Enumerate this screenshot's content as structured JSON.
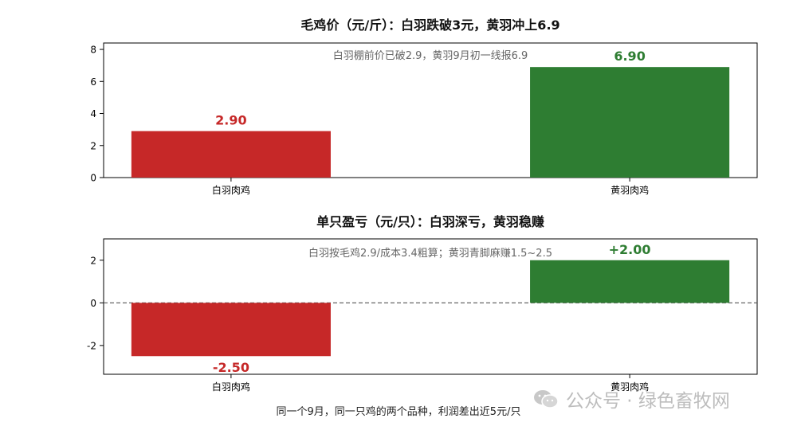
{
  "chart_data": [
    {
      "type": "bar",
      "title": "毛鸡价（元/斤）：白羽跌破3元，黄羽冲上6.9",
      "annotation": "白羽棚前价已破2.9，黄羽9月初一线报6.9",
      "categories": [
        "白羽肉鸡",
        "黄羽肉鸡"
      ],
      "values": [
        2.9,
        6.9
      ],
      "value_labels": [
        "2.90",
        "6.90"
      ],
      "colors": [
        "#c62828",
        "#2e7d32"
      ],
      "ylim": [
        0,
        8.4
      ],
      "yticks": [
        0,
        2,
        4,
        6,
        8
      ],
      "ytick_labels": [
        "0",
        "2",
        "4",
        "6",
        "8"
      ],
      "xlabel": "",
      "ylabel": "",
      "grid": false
    },
    {
      "type": "bar",
      "title": "单只盈亏（元/只）：白羽深亏，黄羽稳赚",
      "annotation": "白羽按毛鸡2.9/成本3.4粗算；黄羽青脚麻赚1.5~2.5",
      "categories": [
        "白羽肉鸡",
        "黄羽肉鸡"
      ],
      "values": [
        -2.5,
        2.0
      ],
      "value_labels": [
        "-2.50",
        "+2.00"
      ],
      "colors": [
        "#c62828",
        "#2e7d32"
      ],
      "ylim": [
        -3.35,
        3.0
      ],
      "yticks": [
        -2,
        0,
        2
      ],
      "ytick_labels": [
        "-2",
        "0",
        "2"
      ],
      "zero_line": true,
      "xlabel": "",
      "ylabel": "",
      "grid": false
    }
  ],
  "footer_note": "同一个9月，同一只鸡的两个品种，利润差出近5元/只",
  "watermark": {
    "text": "公众号 · 绿色畜牧网",
    "icon": "wechat-icon"
  }
}
